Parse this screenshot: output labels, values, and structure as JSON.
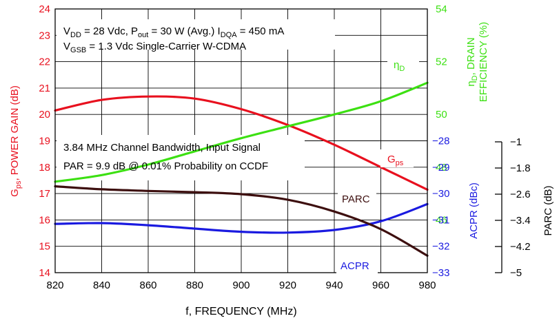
{
  "chart_data": {
    "type": "line",
    "x_label": "f, FREQUENCY (MHz)",
    "x_ticks": [
      820,
      840,
      860,
      880,
      900,
      920,
      940,
      960,
      980
    ],
    "xlim": [
      820,
      980
    ],
    "grid": true,
    "axes": {
      "gain": {
        "label_main": "G",
        "label_sub": "ps",
        "label_rest": ", POWER GAIN (dB)",
        "ylim": [
          14,
          24
        ],
        "ticks": [
          "14",
          "15",
          "16",
          "17",
          "18",
          "19",
          "20",
          "21",
          "22",
          "23",
          "24"
        ],
        "color": "#e8101e"
      },
      "efficiency": {
        "label_line1_main": "η",
        "label_line1_sub": "D",
        "label_line1_rest": ", DRAIN",
        "label_line2": "EFFICIENCY (%)",
        "ylim": [
          44,
          54
        ],
        "ticks": [
          "46",
          "48",
          "50",
          "52",
          "54"
        ],
        "color": "#3ce012"
      },
      "acpr": {
        "label": "ACPR (dBc)",
        "ylim": [
          -33,
          -28
        ],
        "ticks": [
          "-28",
          "-29",
          "-30",
          "-31",
          "-32",
          "-33"
        ],
        "color": "#1a1ae0"
      },
      "parc": {
        "label": "PARC (dB)",
        "ylim": [
          -5,
          -1
        ],
        "ticks": [
          "-1",
          "-1.8",
          "-2.6",
          "-3.4",
          "-4.2",
          "-5"
        ],
        "color": "#000000"
      }
    },
    "series": [
      {
        "name_main": "G",
        "name_sub": "ps",
        "axis": "gain",
        "color": "#e8101e",
        "x": [
          820,
          840,
          860,
          880,
          900,
          920,
          940,
          960,
          980
        ],
        "y": [
          20.15,
          20.55,
          20.68,
          20.6,
          20.2,
          19.6,
          18.85,
          18.0,
          17.15
        ]
      },
      {
        "name_main": "η",
        "name_sub": "D",
        "axis": "efficiency",
        "color": "#3ce012",
        "x": [
          820,
          840,
          860,
          880,
          900,
          920,
          940,
          960,
          980
        ],
        "y": [
          47.45,
          47.7,
          48.1,
          48.6,
          49.1,
          49.55,
          50.0,
          50.5,
          51.2
        ]
      },
      {
        "name": "ACPR",
        "axis": "acpr",
        "color": "#1a1ae0",
        "x": [
          820,
          840,
          860,
          880,
          900,
          920,
          940,
          960,
          980
        ],
        "y": [
          -31.15,
          -31.12,
          -31.2,
          -31.33,
          -31.45,
          -31.48,
          -31.38,
          -31.05,
          -30.4
        ]
      },
      {
        "name": "PARC",
        "axis": "parc",
        "color": "#3d0f0f",
        "x": [
          820,
          840,
          860,
          880,
          900,
          920,
          940,
          960,
          980
        ],
        "y": [
          -2.36,
          -2.45,
          -2.5,
          -2.54,
          -2.6,
          -2.77,
          -3.13,
          -3.67,
          -4.48
        ]
      }
    ],
    "annotations": {
      "conditions_line1": [
        {
          "t": "V",
          "s": "main"
        },
        {
          "t": "DD",
          "s": "sub"
        },
        {
          "t": " = 28 Vdc, P",
          "s": "main"
        },
        {
          "t": "out",
          "s": "sub"
        },
        {
          "t": " = 30 W (Avg.) I",
          "s": "main"
        },
        {
          "t": "DQA",
          "s": "sub"
        },
        {
          "t": " = 450 mA",
          "s": "main"
        }
      ],
      "conditions_line2": [
        {
          "t": "V",
          "s": "main"
        },
        {
          "t": "GSB",
          "s": "sub"
        },
        {
          "t": " = 1.3 Vdc Single-Carrier W-CDMA",
          "s": "main"
        }
      ],
      "signal_line1": "3.84 MHz Channel Bandwidth, Input Signal",
      "signal_line2": "PAR = 9.9 dB @ 0.01% Probability on CCDF"
    }
  }
}
